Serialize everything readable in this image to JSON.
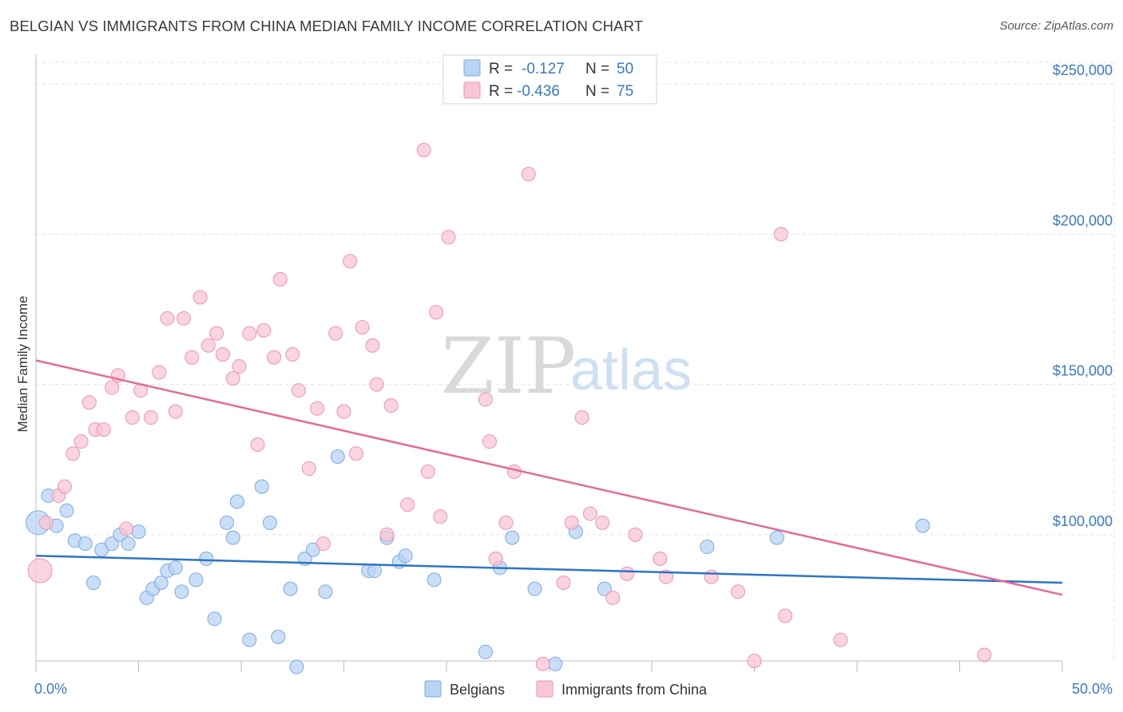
{
  "title": "BELGIAN VS IMMIGRANTS FROM CHINA MEDIAN FAMILY INCOME CORRELATION CHART",
  "source": "Source: ZipAtlas.com",
  "watermark": {
    "zip": "ZIP",
    "atlas": "atlas"
  },
  "legend": {
    "r_label": "R =",
    "n_label": "N =",
    "rows": [
      {
        "r": "-0.127",
        "n": "50"
      },
      {
        "r": "-0.436",
        "n": "75"
      }
    ]
  },
  "bottom_legend": [
    "Belgians",
    "Immigrants from China"
  ],
  "colors": {
    "belgians_fill": "#b8d4f4",
    "belgians_stroke": "#7aaae0",
    "belgians_line": "#2d74c9",
    "china_fill": "#f8c6d6",
    "china_stroke": "#eb94b2",
    "china_line": "#e46a97",
    "tick_text": "#3a78c8",
    "grid": "#e3e3e3"
  },
  "chart_data": {
    "type": "scatter",
    "title": "BELGIAN VS IMMIGRANTS FROM CHINA MEDIAN FAMILY INCOME CORRELATION CHART",
    "xlabel": "",
    "ylabel": "Median Family Income",
    "xlim": [
      0,
      50
    ],
    "ylim": [
      58000,
      262000
    ],
    "x_tick_labels": [
      "0.0%",
      "50.0%"
    ],
    "y_ticks": [
      100000,
      150000,
      200000,
      250000
    ],
    "y_tick_labels": [
      "$100,000",
      "$150,000",
      "$200,000",
      "$250,000"
    ],
    "grid": true,
    "series": [
      {
        "name": "Belgians",
        "r": -0.127,
        "n": 50,
        "trend": [
          [
            0,
            93000
          ],
          [
            50,
            84000
          ]
        ],
        "points": [
          [
            0.1,
            104000,
            "L"
          ],
          [
            0.6,
            113000
          ],
          [
            1.0,
            103000
          ],
          [
            1.5,
            108000
          ],
          [
            1.9,
            98000
          ],
          [
            2.4,
            97000
          ],
          [
            2.8,
            84000
          ],
          [
            3.2,
            95000
          ],
          [
            3.7,
            97000
          ],
          [
            4.1,
            100000
          ],
          [
            4.5,
            97000
          ],
          [
            5.0,
            101000
          ],
          [
            5.4,
            79000
          ],
          [
            5.7,
            82000
          ],
          [
            6.1,
            84000
          ],
          [
            6.4,
            88000
          ],
          [
            6.8,
            89000
          ],
          [
            7.1,
            81000
          ],
          [
            7.8,
            85000
          ],
          [
            8.3,
            92000
          ],
          [
            8.7,
            72000
          ],
          [
            9.3,
            104000
          ],
          [
            9.6,
            99000
          ],
          [
            9.8,
            111000
          ],
          [
            10.4,
            65000
          ],
          [
            11.0,
            116000
          ],
          [
            11.4,
            104000
          ],
          [
            11.8,
            66000
          ],
          [
            12.4,
            82000
          ],
          [
            12.7,
            56000
          ],
          [
            13.1,
            92000
          ],
          [
            13.5,
            95000
          ],
          [
            14.1,
            81000
          ],
          [
            14.7,
            126000
          ],
          [
            16.2,
            88000
          ],
          [
            16.5,
            88000
          ],
          [
            17.1,
            99000
          ],
          [
            17.7,
            91000
          ],
          [
            18.0,
            93000
          ],
          [
            19.4,
            85000
          ],
          [
            21.9,
            61000
          ],
          [
            22.6,
            89000
          ],
          [
            23.2,
            99000
          ],
          [
            24.3,
            82000
          ],
          [
            25.3,
            57000
          ],
          [
            26.3,
            101000
          ],
          [
            27.7,
            82000
          ],
          [
            32.7,
            96000
          ],
          [
            36.1,
            99000
          ],
          [
            43.2,
            103000
          ]
        ]
      },
      {
        "name": "Immigrants from China",
        "r": -0.436,
        "n": 75,
        "trend": [
          [
            0,
            158000
          ],
          [
            50,
            80000
          ]
        ],
        "points": [
          [
            0.2,
            88000,
            "L"
          ],
          [
            0.5,
            104000
          ],
          [
            1.1,
            113000
          ],
          [
            1.4,
            116000
          ],
          [
            1.8,
            127000
          ],
          [
            2.2,
            131000
          ],
          [
            2.6,
            144000
          ],
          [
            2.9,
            135000
          ],
          [
            3.3,
            135000
          ],
          [
            3.7,
            149000
          ],
          [
            4.0,
            153000
          ],
          [
            4.4,
            102000
          ],
          [
            4.7,
            139000
          ],
          [
            5.1,
            148000
          ],
          [
            5.6,
            139000
          ],
          [
            6.0,
            154000
          ],
          [
            6.4,
            172000
          ],
          [
            6.8,
            141000
          ],
          [
            7.2,
            172000
          ],
          [
            7.6,
            159000
          ],
          [
            8.0,
            179000
          ],
          [
            8.4,
            163000
          ],
          [
            8.8,
            167000
          ],
          [
            9.1,
            160000
          ],
          [
            9.6,
            152000
          ],
          [
            9.9,
            156000
          ],
          [
            10.4,
            167000
          ],
          [
            10.8,
            130000
          ],
          [
            11.1,
            168000
          ],
          [
            11.6,
            159000
          ],
          [
            11.9,
            185000
          ],
          [
            12.5,
            160000
          ],
          [
            12.8,
            148000
          ],
          [
            13.3,
            122000
          ],
          [
            13.7,
            142000
          ],
          [
            14.0,
            97000
          ],
          [
            14.6,
            167000
          ],
          [
            15.0,
            141000
          ],
          [
            15.3,
            191000
          ],
          [
            15.6,
            127000
          ],
          [
            15.9,
            169000
          ],
          [
            16.4,
            163000
          ],
          [
            16.6,
            150000
          ],
          [
            17.1,
            100000
          ],
          [
            17.3,
            143000
          ],
          [
            18.1,
            110000
          ],
          [
            18.9,
            228000
          ],
          [
            19.1,
            121000
          ],
          [
            19.5,
            174000
          ],
          [
            19.7,
            106000
          ],
          [
            20.1,
            199000
          ],
          [
            21.9,
            145000
          ],
          [
            22.1,
            131000
          ],
          [
            22.4,
            92000
          ],
          [
            22.9,
            104000
          ],
          [
            23.3,
            121000
          ],
          [
            24.0,
            220000
          ],
          [
            24.7,
            57000
          ],
          [
            25.7,
            84000
          ],
          [
            26.1,
            104000
          ],
          [
            26.6,
            139000
          ],
          [
            27.0,
            107000
          ],
          [
            27.6,
            104000
          ],
          [
            28.1,
            79000
          ],
          [
            28.8,
            87000
          ],
          [
            29.2,
            100000
          ],
          [
            30.4,
            92000
          ],
          [
            30.7,
            86000
          ],
          [
            32.9,
            86000
          ],
          [
            34.2,
            81000
          ],
          [
            35.0,
            58000
          ],
          [
            36.3,
            200000
          ],
          [
            36.5,
            73000
          ],
          [
            39.2,
            65000
          ],
          [
            46.2,
            60000
          ]
        ]
      }
    ]
  }
}
